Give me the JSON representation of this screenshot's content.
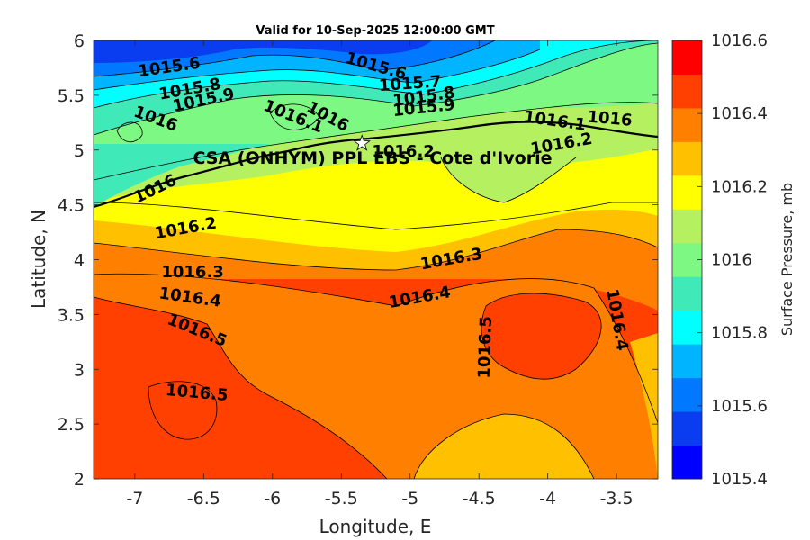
{
  "chart_data": {
    "type": "contour",
    "title": "Valid for 10-Sep-2025 12:00:00 GMT",
    "xlabel": "Longitude, E",
    "ylabel": "Latitude, N",
    "xlim": [
      -7.3,
      -3.2
    ],
    "ylim": [
      2,
      6
    ],
    "xticks": [
      "-7",
      "-6.5",
      "-6",
      "-5.5",
      "-5",
      "-4.5",
      "-4",
      "-3.5"
    ],
    "yticks": [
      "2",
      "2.5",
      "3",
      "3.5",
      "4",
      "4.5",
      "5",
      "5.5",
      "6"
    ],
    "colorbar": {
      "label": "Surface Pressure, mb",
      "range": [
        1015.4,
        1016.6
      ],
      "ticks": [
        "1015.4",
        "1015.6",
        "1015.8",
        "1016",
        "1016.2",
        "1016.4",
        "1016.6"
      ],
      "colors": [
        "#0000ff",
        "#0a3cf0",
        "#0078ff",
        "#00b4ff",
        "#00ffff",
        "#40eab8",
        "#7df882",
        "#b5f060",
        "#ffff00",
        "#ffc000",
        "#ff8000",
        "#ff4000",
        "#ff0000"
      ]
    },
    "contour_labels": [
      {
        "text": "1015.6",
        "x": -6.75,
        "y": 5.75,
        "rot": -8
      },
      {
        "text": "1015.8",
        "x": -6.6,
        "y": 5.55,
        "rot": -10
      },
      {
        "text": "1015.9",
        "x": -6.5,
        "y": 5.45,
        "rot": -12
      },
      {
        "text": "1016",
        "x": -6.85,
        "y": 5.28,
        "rot": 20
      },
      {
        "text": "1016.1",
        "x": -5.85,
        "y": 5.3,
        "rot": 22
      },
      {
        "text": "1016",
        "x": -5.6,
        "y": 5.3,
        "rot": 28
      },
      {
        "text": "1015.6",
        "x": -5.25,
        "y": 5.76,
        "rot": 16
      },
      {
        "text": "1015.7",
        "x": -5.0,
        "y": 5.6,
        "rot": -4
      },
      {
        "text": "1015.8",
        "x": -4.9,
        "y": 5.48,
        "rot": -8
      },
      {
        "text": "1015.9",
        "x": -4.9,
        "y": 5.38,
        "rot": -6
      },
      {
        "text": "1016.1",
        "x": -3.95,
        "y": 5.26,
        "rot": 8
      },
      {
        "text": "1016",
        "x": -3.55,
        "y": 5.28,
        "rot": 5
      },
      {
        "text": "1016.2",
        "x": -5.05,
        "y": 4.98,
        "rot": 0
      },
      {
        "text": "1016.2",
        "x": -3.9,
        "y": 5.05,
        "rot": -10
      },
      {
        "text": "1016",
        "x": -6.85,
        "y": 4.64,
        "rot": -26
      },
      {
        "text": "1016.2",
        "x": -6.63,
        "y": 4.28,
        "rot": -10
      },
      {
        "text": "1016.3",
        "x": -6.58,
        "y": 3.88,
        "rot": 0
      },
      {
        "text": "1016.4",
        "x": -6.6,
        "y": 3.65,
        "rot": 8
      },
      {
        "text": "1016.5",
        "x": -6.55,
        "y": 3.35,
        "rot": 22
      },
      {
        "text": "1016.5",
        "x": -6.55,
        "y": 2.78,
        "rot": 5
      },
      {
        "text": "1016.3",
        "x": -4.7,
        "y": 4.0,
        "rot": -10
      },
      {
        "text": "1016.4",
        "x": -4.93,
        "y": 3.65,
        "rot": -10
      },
      {
        "text": "1016.5",
        "x": -4.45,
        "y": 3.2,
        "rot": -88
      },
      {
        "text": "1016.4",
        "x": -3.5,
        "y": 3.45,
        "rot": 80
      }
    ],
    "site": {
      "label": "CSA (ONHYM) PPL EBS - Cote d'Ivorie",
      "x": -5.35,
      "y": 5.06
    }
  }
}
